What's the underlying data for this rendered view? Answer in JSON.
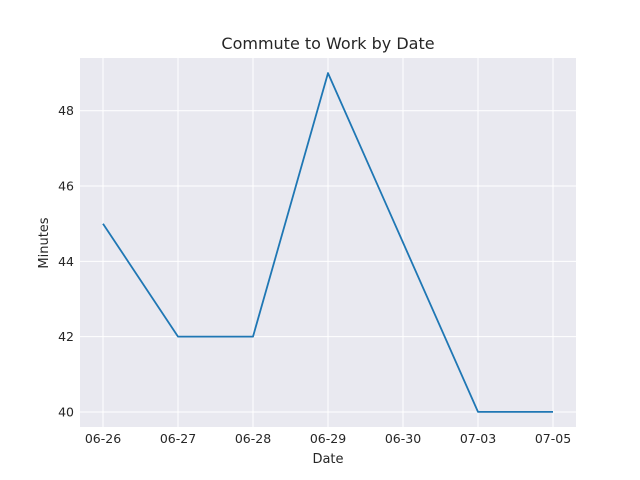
{
  "chart_data": {
    "type": "line",
    "title": "Commute to Work by Date",
    "xlabel": "Date",
    "ylabel": "Minutes",
    "categories": [
      "06-26",
      "06-27",
      "06-28",
      "06-29",
      "06-30",
      "07-03",
      "07-05"
    ],
    "series": [
      {
        "values": [
          45,
          42,
          42,
          49,
          44.5,
          40,
          40
        ]
      }
    ],
    "ylim": [
      39.6,
      49.4
    ],
    "yticks": [
      40,
      42,
      44,
      46,
      48
    ],
    "grid": true,
    "line_color": "#1f77b4",
    "background_color": "#e9e9f0"
  }
}
